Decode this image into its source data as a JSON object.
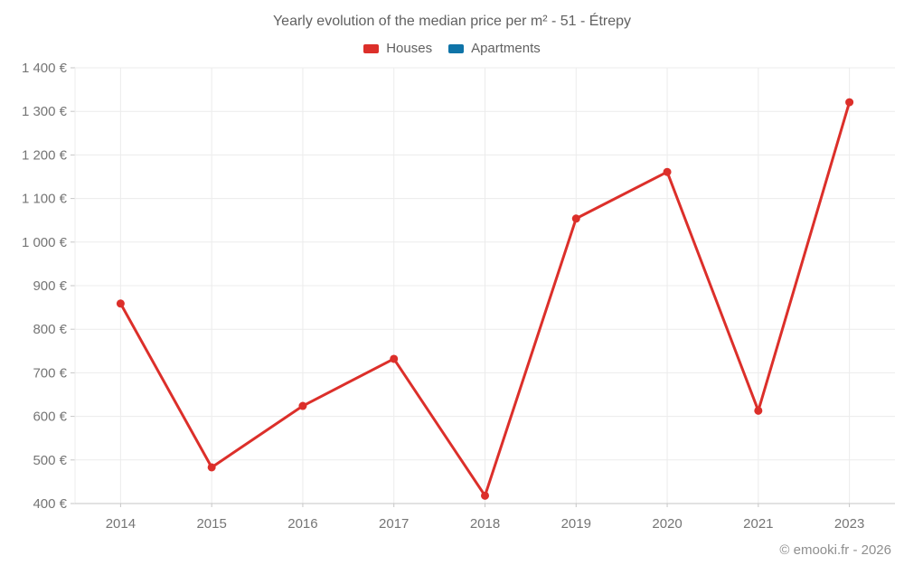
{
  "title": "Yearly evolution of the median price per m² - 51 - Étrepy",
  "legend": {
    "items": [
      {
        "label": "Houses",
        "color": "#dc2f2a"
      },
      {
        "label": "Apartments",
        "color": "#0f74a8"
      }
    ]
  },
  "footer": {
    "credit": "© emooki.fr - 2026"
  },
  "colors": {
    "grid": "#ececec",
    "axis": "#c6c6c6",
    "axis_text": "#757575",
    "title_text": "#616161",
    "legend_text": "#616161",
    "footer_text": "#8f8f8f",
    "background": "#ffffff"
  },
  "chart_data": {
    "type": "line",
    "categories": [
      "2014",
      "2015",
      "2016",
      "2017",
      "2018",
      "2019",
      "2020",
      "2021",
      "2023"
    ],
    "series": [
      {
        "name": "Houses",
        "color": "#dc2f2a",
        "values": [
          859,
          483,
          624,
          732,
          418,
          1054,
          1161,
          613,
          1321
        ]
      },
      {
        "name": "Apartments",
        "color": "#0f74a8",
        "values": []
      }
    ],
    "title": "Yearly evolution of the median price per m² - 51 - Étrepy",
    "xlabel": "",
    "ylabel": "",
    "y_unit": "€",
    "ylim": [
      400,
      1400
    ],
    "ytick_step": 100,
    "ytick_format": "thousands-space-euro",
    "grid": true,
    "legend_position": "top",
    "marker": "circle",
    "marker_radius": 4.5,
    "line_width": 3
  }
}
